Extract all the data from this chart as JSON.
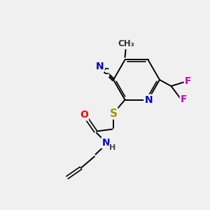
{
  "bg_color": "#f0f0f0",
  "atom_colors": {
    "N": "#0000cc",
    "O": "#ff0000",
    "S": "#999900",
    "F": "#cc00cc",
    "C": "#000000",
    "H": "#444444"
  },
  "bond_color": "#000000"
}
